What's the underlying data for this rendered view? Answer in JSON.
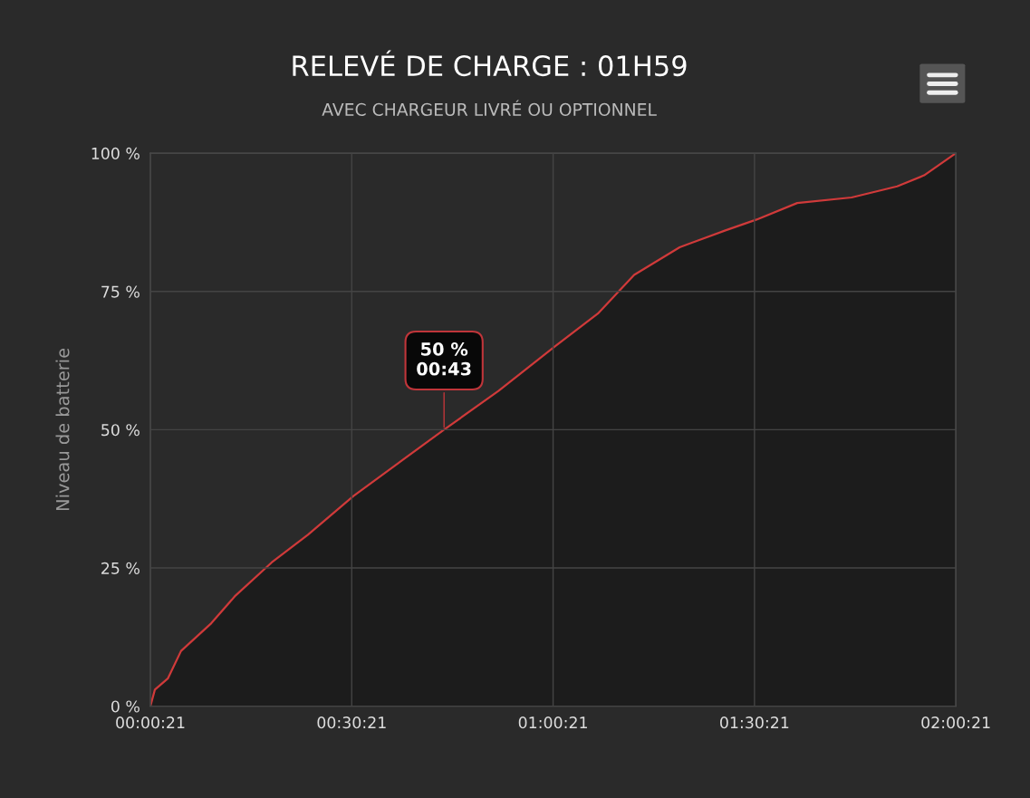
{
  "chart_data": {
    "type": "area",
    "title": "RELEVÉ DE CHARGE : 01H59",
    "subtitle": "AVEC CHARGEUR LIVRÉ OU OPTIONNEL",
    "ylabel": "Niveau de batterie",
    "x": [
      0.0058,
      0.017,
      0.049,
      0.082,
      0.157,
      0.217,
      0.307,
      0.397,
      0.51,
      0.622,
      0.735,
      0.87,
      1.009,
      1.117,
      1.207,
      1.32,
      1.432,
      1.511,
      1.612,
      1.747,
      1.86,
      1.927,
      2.0058
    ],
    "series": [
      {
        "color": "#d03a3a",
        "values": [
          0,
          3,
          5,
          10,
          15,
          20,
          26,
          31,
          38,
          44,
          50,
          57,
          65,
          71,
          78,
          83,
          86,
          88,
          91,
          92,
          94,
          96,
          100
        ]
      }
    ],
    "xlim": [
      0.0058,
      2.0058
    ],
    "xticks": [
      {
        "value": 0.0058,
        "label": "00:00:21"
      },
      {
        "value": 0.5058,
        "label": "00:30:21"
      },
      {
        "value": 1.0058,
        "label": "01:00:21"
      },
      {
        "value": 1.5058,
        "label": "01:30:21"
      },
      {
        "value": 2.0058,
        "label": "02:00:21"
      }
    ],
    "ylim": [
      0,
      100
    ],
    "yticks": [
      {
        "value": 0,
        "label": "0 %"
      },
      {
        "value": 25,
        "label": "25 %"
      },
      {
        "value": 50,
        "label": "50 %"
      },
      {
        "value": 75,
        "label": "75 %"
      },
      {
        "value": 100,
        "label": "100 %"
      }
    ],
    "grid": true,
    "legend": false,
    "annotations": [
      {
        "text": "50 %\n00:43",
        "x": 0.735,
        "y": 50
      }
    ]
  }
}
